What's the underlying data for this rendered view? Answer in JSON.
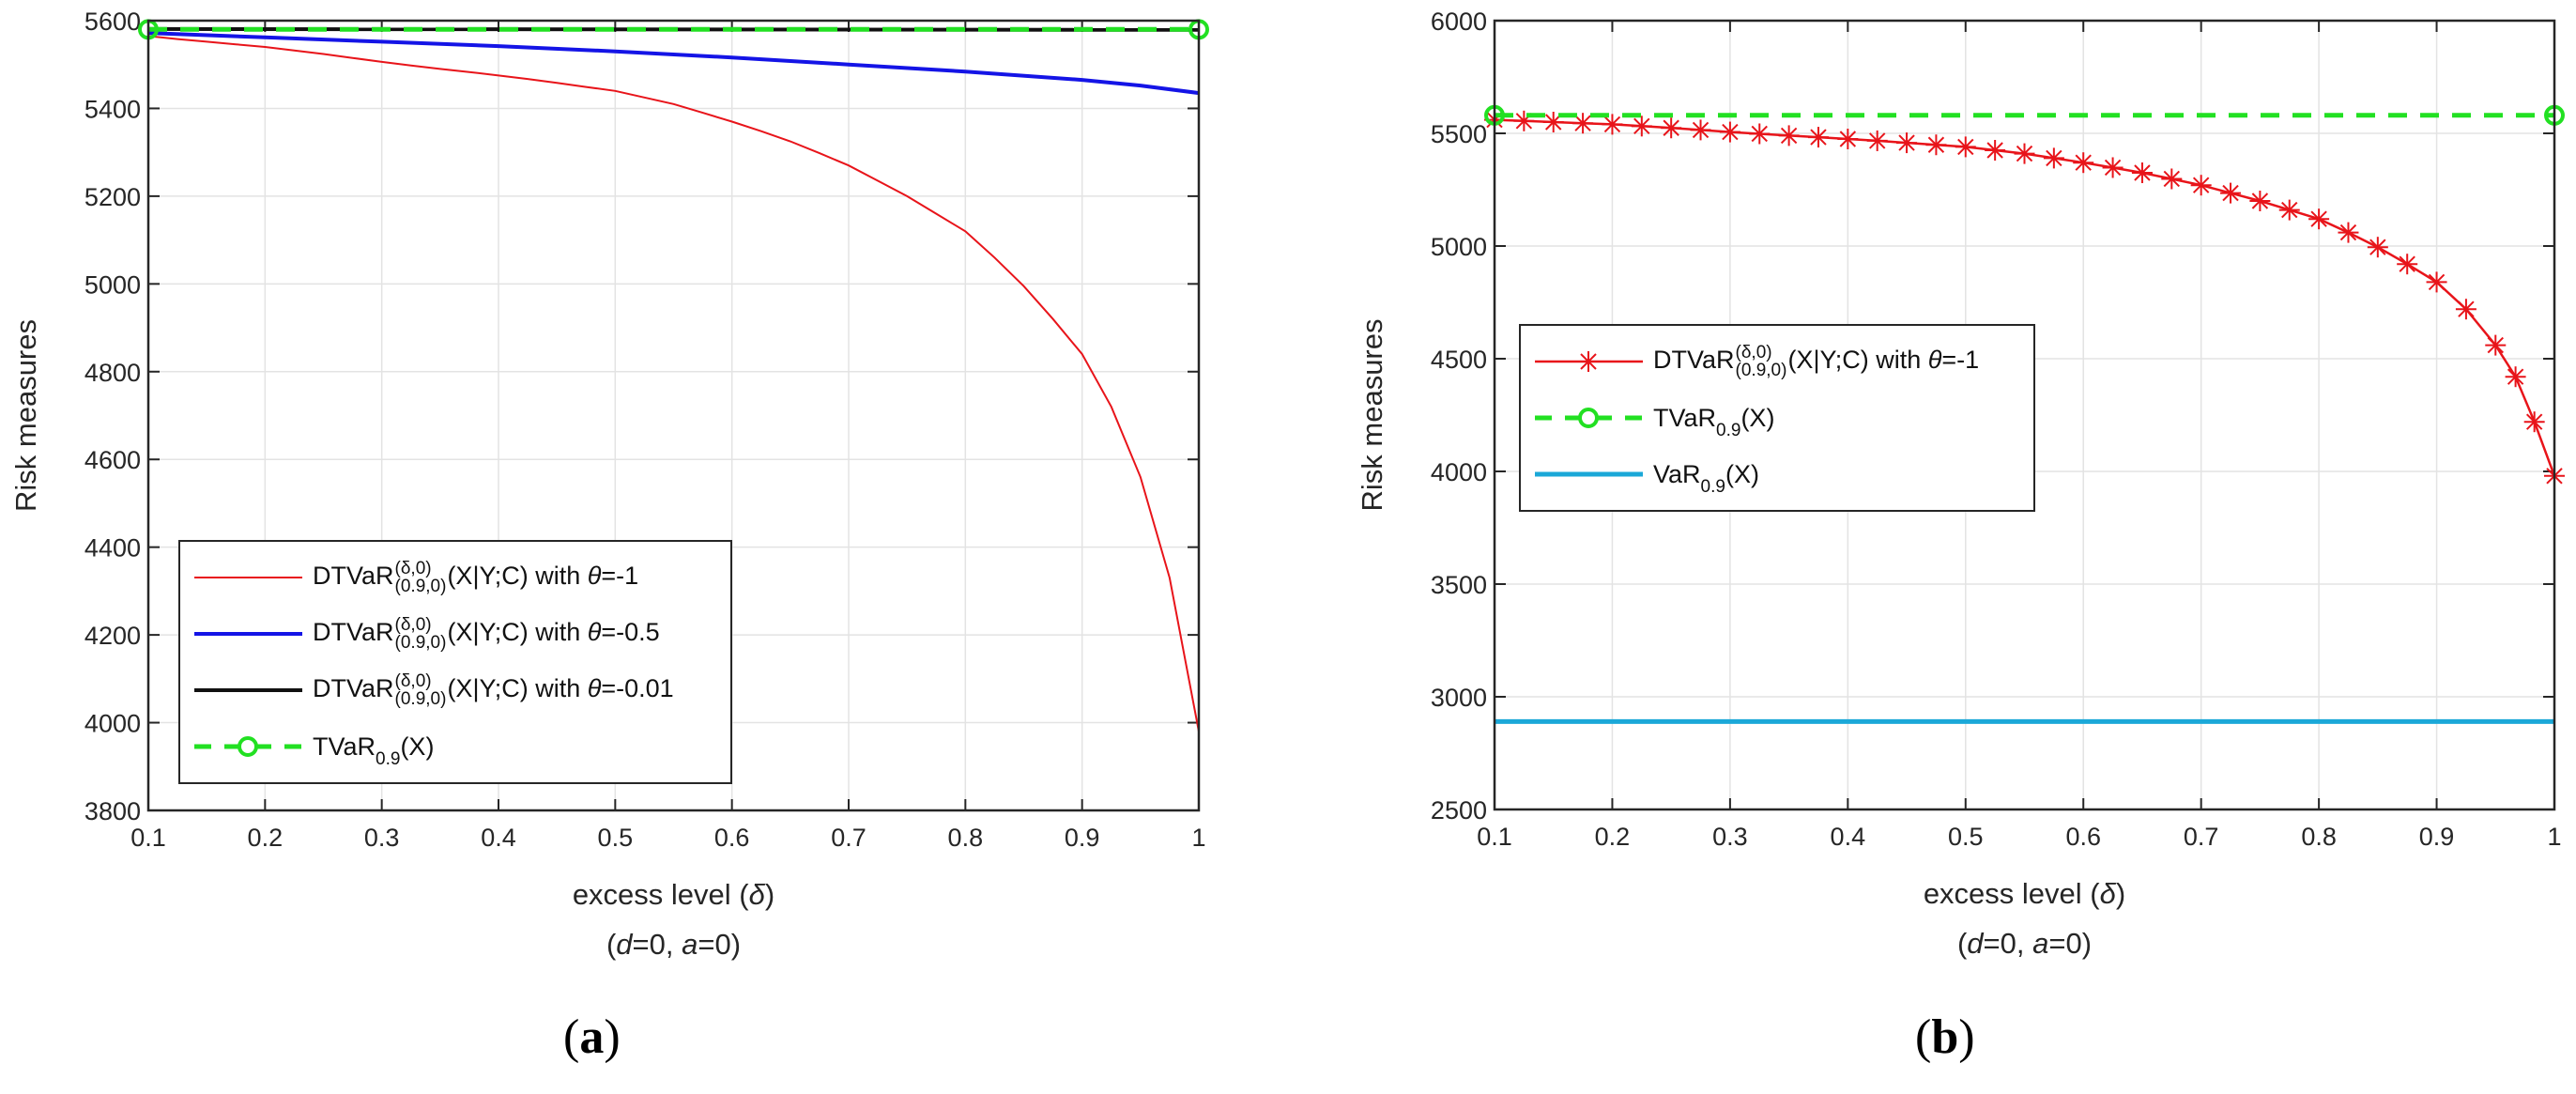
{
  "chart_data": [
    {
      "type": "line",
      "panel_label": "a",
      "xlabel_text": "excess level (",
      "xlabel_symbol": "δ",
      "xlabel_close": ")",
      "subtitle": {
        "open": "(",
        "d": "d",
        "d_eq": "=0, ",
        "a": "a",
        "a_eq": "=0)"
      },
      "ylabel": "Risk measures",
      "xlim": [
        0.1,
        1
      ],
      "ylim": [
        3800,
        5600
      ],
      "xticks": [
        0.1,
        0.2,
        0.3,
        0.4,
        0.5,
        0.6,
        0.7,
        0.8,
        0.9,
        1
      ],
      "xtick_labels": [
        "0.1",
        "0.2",
        "0.3",
        "0.4",
        "0.5",
        "0.6",
        "0.7",
        "0.8",
        "0.9",
        "1"
      ],
      "yticks": [
        3800,
        4000,
        4200,
        4400,
        4600,
        4800,
        5000,
        5200,
        5400,
        5600
      ],
      "ytick_labels": [
        "3800",
        "4000",
        "4200",
        "4400",
        "4600",
        "4800",
        "5000",
        "5200",
        "5400",
        "5600"
      ],
      "grid": true,
      "legend_position": "lower-left",
      "series": [
        {
          "name": "DTVaR θ=-1",
          "color": "#e8141a",
          "width": 2,
          "marker": "none",
          "dash": "none",
          "label": {
            "main": "DTVaR",
            "sup": "(δ,0)",
            "sub": "(0.9,0)",
            "rest": "(X|Y;C) with ",
            "theta": "θ",
            "val": "=-1"
          },
          "x": [
            0.1,
            0.125,
            0.15,
            0.175,
            0.2,
            0.225,
            0.25,
            0.275,
            0.3,
            0.325,
            0.35,
            0.375,
            0.4,
            0.425,
            0.45,
            0.475,
            0.5,
            0.525,
            0.55,
            0.575,
            0.6,
            0.625,
            0.65,
            0.675,
            0.7,
            0.725,
            0.75,
            0.775,
            0.8,
            0.825,
            0.85,
            0.875,
            0.9,
            0.925,
            0.95,
            0.975,
            1.0
          ],
          "y": [
            5565,
            5558,
            5552,
            5546,
            5540,
            5532,
            5524,
            5515,
            5506,
            5498,
            5490,
            5483,
            5475,
            5467,
            5458,
            5449,
            5440,
            5425,
            5410,
            5390,
            5370,
            5348,
            5325,
            5298,
            5270,
            5235,
            5200,
            5160,
            5120,
            5060,
            4995,
            4920,
            4840,
            4720,
            4560,
            4330,
            3980
          ]
        },
        {
          "name": "DTVaR θ=-0.5",
          "color": "#1414e6",
          "width": 4,
          "marker": "none",
          "dash": "none",
          "label": {
            "main": "DTVaR",
            "sup": "(δ,0)",
            "sub": "(0.9,0)",
            "rest": "(X|Y;C) with ",
            "theta": "θ",
            "val": "=-0.5"
          },
          "x": [
            0.1,
            0.2,
            0.3,
            0.4,
            0.5,
            0.6,
            0.7,
            0.8,
            0.9,
            0.95,
            1.0
          ],
          "y": [
            5572,
            5562,
            5552,
            5542,
            5530,
            5516,
            5500,
            5484,
            5465,
            5452,
            5435
          ]
        },
        {
          "name": "DTVaR θ=-0.01",
          "color": "#111111",
          "width": 4,
          "marker": "none",
          "dash": "none",
          "label": {
            "main": "DTVaR",
            "sup": "(δ,0)",
            "sub": "(0.9,0)",
            "rest": "(X|Y;C) with ",
            "theta": "θ",
            "val": "=-0.01"
          },
          "x": [
            0.1,
            1.0
          ],
          "y": [
            5581,
            5579
          ]
        },
        {
          "name": "TVaR_0.9(X)",
          "color": "#22e022",
          "width": 5,
          "marker": "circle",
          "dash": "dashed",
          "label": {
            "main": "TVaR",
            "sub": "0.9",
            "rest": "(X)"
          },
          "x": [
            0.1,
            1.0
          ],
          "y": [
            5580,
            5580
          ]
        }
      ]
    },
    {
      "type": "line",
      "panel_label": "b",
      "xlabel_text": "excess level (",
      "xlabel_symbol": "δ",
      "xlabel_close": ")",
      "subtitle": {
        "open": "(",
        "d": "d",
        "d_eq": "=0, ",
        "a": "a",
        "a_eq": "=0)"
      },
      "ylabel": "Risk measures",
      "xlim": [
        0.1,
        1
      ],
      "ylim": [
        2500,
        6000
      ],
      "xticks": [
        0.1,
        0.2,
        0.3,
        0.4,
        0.5,
        0.6,
        0.7,
        0.8,
        0.9,
        1
      ],
      "xtick_labels": [
        "0.1",
        "0.2",
        "0.3",
        "0.4",
        "0.5",
        "0.6",
        "0.7",
        "0.8",
        "0.9",
        "1"
      ],
      "yticks": [
        2500,
        3000,
        3500,
        4000,
        4500,
        5000,
        5500,
        6000
      ],
      "ytick_labels": [
        "2500",
        "3000",
        "3500",
        "4000",
        "4500",
        "5000",
        "5500",
        "6000"
      ],
      "grid": true,
      "legend_position": "center-left",
      "series": [
        {
          "name": "DTVaR θ=-1",
          "color": "#e8141a",
          "width": 2.5,
          "marker": "asterisk",
          "dash": "none",
          "label": {
            "main": "DTVaR",
            "sup": "(δ,0)",
            "sub": "(0.9,0)",
            "rest": "(X|Y;C) with ",
            "theta": "θ",
            "val": "=-1"
          },
          "x": [
            0.1,
            0.125,
            0.15,
            0.175,
            0.2,
            0.225,
            0.25,
            0.275,
            0.3,
            0.325,
            0.35,
            0.375,
            0.4,
            0.425,
            0.45,
            0.475,
            0.5,
            0.525,
            0.55,
            0.575,
            0.6,
            0.625,
            0.65,
            0.675,
            0.7,
            0.725,
            0.75,
            0.775,
            0.8,
            0.825,
            0.85,
            0.875,
            0.9,
            0.925,
            0.95,
            0.967,
            0.983,
            1.0
          ],
          "y": [
            5560,
            5555,
            5550,
            5545,
            5540,
            5532,
            5524,
            5515,
            5506,
            5498,
            5490,
            5483,
            5475,
            5467,
            5458,
            5449,
            5440,
            5425,
            5410,
            5390,
            5370,
            5348,
            5325,
            5298,
            5270,
            5235,
            5200,
            5160,
            5120,
            5060,
            4995,
            4920,
            4840,
            4720,
            4560,
            4420,
            4220,
            3980
          ]
        },
        {
          "name": "TVaR_0.9(X)",
          "color": "#22e022",
          "width": 5,
          "marker": "circle",
          "dash": "dashed",
          "label": {
            "main": "TVaR",
            "sub": "0.9",
            "rest": "(X)"
          },
          "x": [
            0.1,
            1.0
          ],
          "y": [
            5580,
            5580
          ]
        },
        {
          "name": "VaR_0.9(X)",
          "color": "#1ba8d8",
          "width": 5,
          "marker": "none",
          "dash": "none",
          "label": {
            "main": "VaR",
            "sub": "0.9",
            "rest": "(X)"
          },
          "x": [
            0.1,
            1.0
          ],
          "y": [
            2890,
            2890
          ]
        }
      ]
    }
  ]
}
